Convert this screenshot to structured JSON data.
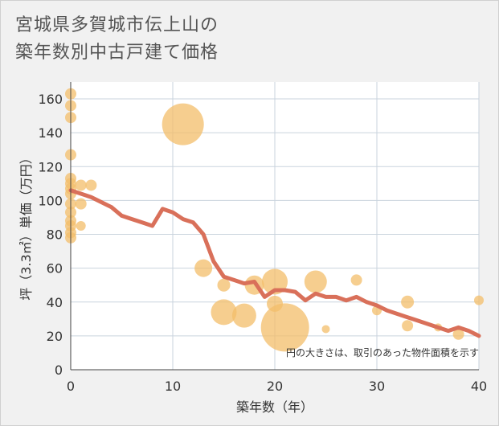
{
  "chart_data": {
    "type": "scatter",
    "title": "宮城県多賀城市伝上山の\n築年数別中古戸建て価格",
    "xlabel": "築年数（年）",
    "ylabel": "坪（3.3㎡）単価（万円）",
    "note": "円の大きさは、取引のあった物件面積を示す",
    "xlim": [
      0,
      40
    ],
    "ylim": [
      0,
      170
    ],
    "xticks": [
      0,
      10,
      20,
      30,
      40
    ],
    "yticks": [
      0,
      20,
      40,
      60,
      80,
      100,
      120,
      140,
      160
    ],
    "grid": true,
    "colors": {
      "bubble": "#f3be6a",
      "trend": "#d9705a",
      "plot_bg": "#ffffff",
      "page_bg": "#f1f1f1",
      "grid": "#c9d3dd"
    },
    "points": [
      {
        "x": 0,
        "y": 163,
        "r": 7
      },
      {
        "x": 0,
        "y": 156,
        "r": 7
      },
      {
        "x": 0,
        "y": 149,
        "r": 7
      },
      {
        "x": 0,
        "y": 127,
        "r": 7
      },
      {
        "x": 0,
        "y": 113,
        "r": 7
      },
      {
        "x": 0,
        "y": 110,
        "r": 7
      },
      {
        "x": 0,
        "y": 107,
        "r": 7
      },
      {
        "x": 0,
        "y": 104,
        "r": 7
      },
      {
        "x": 0,
        "y": 98,
        "r": 7
      },
      {
        "x": 0,
        "y": 93,
        "r": 7
      },
      {
        "x": 0,
        "y": 88,
        "r": 7
      },
      {
        "x": 0,
        "y": 85,
        "r": 7
      },
      {
        "x": 0,
        "y": 81,
        "r": 7
      },
      {
        "x": 0,
        "y": 78,
        "r": 7
      },
      {
        "x": 1,
        "y": 109,
        "r": 7
      },
      {
        "x": 2,
        "y": 109,
        "r": 7
      },
      {
        "x": 1,
        "y": 98,
        "r": 7
      },
      {
        "x": 1,
        "y": 85,
        "r": 6
      },
      {
        "x": 11,
        "y": 145,
        "r": 26
      },
      {
        "x": 13,
        "y": 60,
        "r": 11
      },
      {
        "x": 15,
        "y": 50,
        "r": 8
      },
      {
        "x": 15,
        "y": 34,
        "r": 16
      },
      {
        "x": 17,
        "y": 32,
        "r": 15
      },
      {
        "x": 18,
        "y": 50,
        "r": 12
      },
      {
        "x": 20,
        "y": 52,
        "r": 16
      },
      {
        "x": 20,
        "y": 39,
        "r": 10
      },
      {
        "x": 21,
        "y": 25,
        "r": 30
      },
      {
        "x": 24,
        "y": 52,
        "r": 14
      },
      {
        "x": 25,
        "y": 24,
        "r": 5
      },
      {
        "x": 28,
        "y": 53,
        "r": 7
      },
      {
        "x": 30,
        "y": 35,
        "r": 6
      },
      {
        "x": 33,
        "y": 40,
        "r": 8
      },
      {
        "x": 33,
        "y": 26,
        "r": 7
      },
      {
        "x": 36,
        "y": 25,
        "r": 5
      },
      {
        "x": 38,
        "y": 21,
        "r": 7
      },
      {
        "x": 40,
        "y": 41,
        "r": 6
      }
    ],
    "trend": {
      "x": [
        0,
        1,
        2,
        3,
        4,
        5,
        6,
        7,
        8,
        9,
        10,
        11,
        12,
        13,
        14,
        15,
        16,
        17,
        18,
        19,
        20,
        21,
        22,
        23,
        24,
        25,
        26,
        27,
        28,
        29,
        30,
        31,
        32,
        33,
        34,
        35,
        36,
        37,
        38,
        39,
        40
      ],
      "y": [
        106,
        104,
        102,
        99,
        96,
        91,
        89,
        87,
        85,
        95,
        93,
        89,
        87,
        80,
        64,
        55,
        53,
        51,
        52,
        43,
        47,
        47,
        46,
        41,
        45,
        43,
        43,
        41,
        43,
        40,
        38,
        35,
        33,
        31,
        29,
        27,
        25,
        23,
        25,
        23,
        20
      ]
    }
  }
}
